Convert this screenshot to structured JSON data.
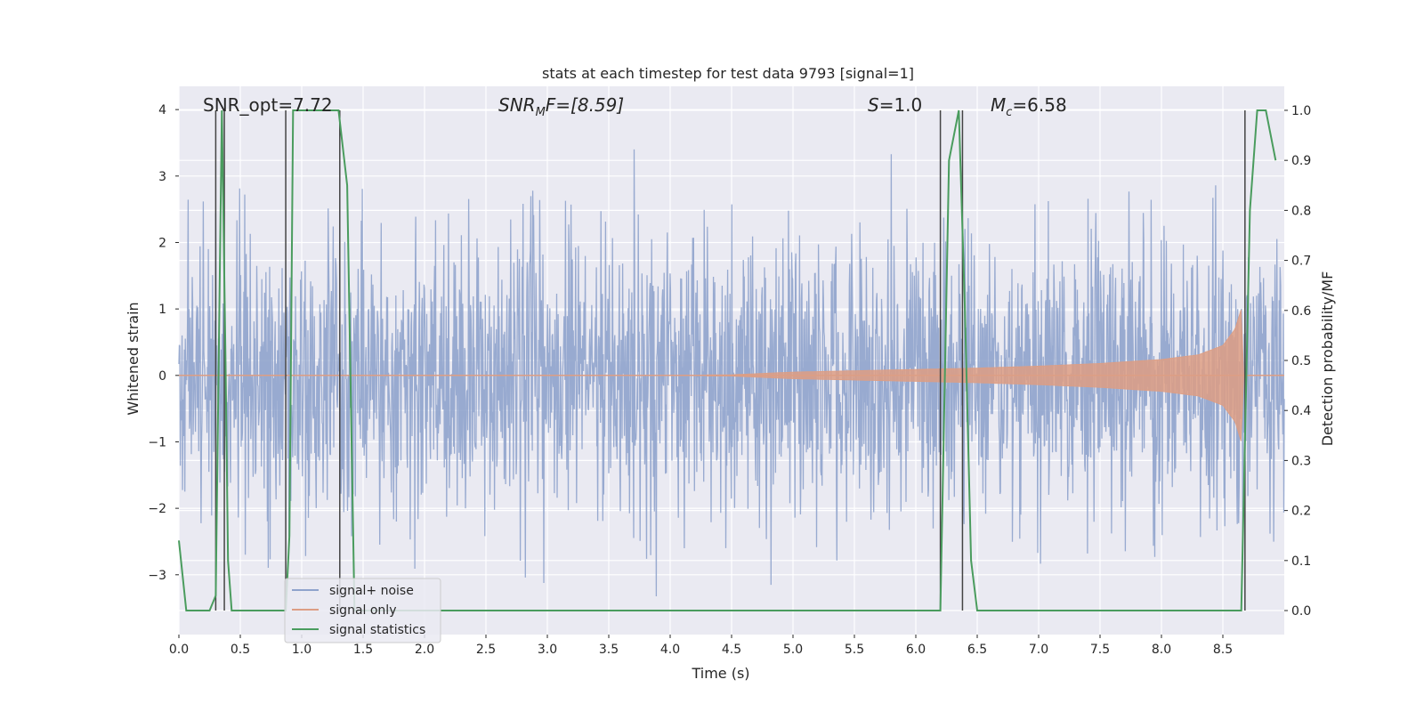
{
  "chart_data": {
    "type": "line",
    "title": "stats at each timestep for test data 9793 [signal=1]",
    "xlabel": "Time (s)",
    "ylabel": "Whitened strain",
    "y2label": "Detection probability/MF",
    "xlim": [
      0.0,
      9.0
    ],
    "ylim": [
      -3.9,
      4.35
    ],
    "y2lim": [
      -0.048,
      1.048
    ],
    "grid": true,
    "legend_position": "lower-left",
    "x_ticks": [
      "0.0",
      "0.5",
      "1.0",
      "1.5",
      "2.0",
      "2.5",
      "3.0",
      "3.5",
      "4.0",
      "4.5",
      "5.0",
      "5.5",
      "6.0",
      "6.5",
      "7.0",
      "7.5",
      "8.0",
      "8.5"
    ],
    "x_tick_values": [
      0.0,
      0.5,
      1.0,
      1.5,
      2.0,
      2.5,
      3.0,
      3.5,
      4.0,
      4.5,
      5.0,
      5.5,
      6.0,
      6.5,
      7.0,
      7.5,
      8.0,
      8.5
    ],
    "y_ticks": [
      "4",
      "3",
      "2",
      "1",
      "0",
      "−1",
      "−2",
      "−3"
    ],
    "y_tick_values": [
      4,
      3,
      2,
      1,
      0,
      -1,
      -2,
      -3
    ],
    "y2_ticks": [
      "1.0",
      "0.9",
      "0.8",
      "0.7",
      "0.6",
      "0.5",
      "0.4",
      "0.3",
      "0.2",
      "0.1",
      "0.0"
    ],
    "y2_tick_values": [
      1.0,
      0.9,
      0.8,
      0.7,
      0.6,
      0.5,
      0.4,
      0.3,
      0.2,
      0.1,
      0.0
    ],
    "annotations": {
      "snr_opt": "SNR_opt=7.72",
      "snr_mf_name": "SNR",
      "snr_mf_sub": "M",
      "snr_mf_rest": "F=[8.59]",
      "s_name": "S",
      "s_rest": "=1.0",
      "mc_name": "M",
      "mc_sub": "c",
      "mc_rest": "=6.58"
    },
    "series": [
      {
        "name": "signal+ noise",
        "color": "#8fa3cc",
        "description_envelope": {
          "x_range": [
            0.0,
            9.0
          ],
          "typical_peak": 2.5,
          "max_peak": 3.4
        }
      },
      {
        "name": "signal only",
        "color": "#dd9e84",
        "envelope": [
          [
            0.0,
            0.0
          ],
          [
            4.5,
            0.01
          ],
          [
            5.0,
            0.05
          ],
          [
            5.5,
            0.07
          ],
          [
            6.0,
            0.09
          ],
          [
            6.5,
            0.11
          ],
          [
            7.0,
            0.14
          ],
          [
            7.5,
            0.18
          ],
          [
            8.0,
            0.24
          ],
          [
            8.3,
            0.31
          ],
          [
            8.5,
            0.45
          ],
          [
            8.6,
            0.7
          ],
          [
            8.65,
            1.0
          ],
          [
            8.67,
            0.0
          ],
          [
            9.0,
            0.0
          ]
        ]
      },
      {
        "name": "signal statistics",
        "color": "#4a9c5e",
        "x": [
          0.0,
          0.06,
          0.15,
          0.25,
          0.3,
          0.35,
          0.38,
          0.4,
          0.43,
          0.5,
          0.87,
          0.9,
          0.93,
          0.96,
          1.3,
          1.37,
          1.43,
          6.2,
          6.27,
          6.35,
          6.4,
          6.45,
          6.5,
          8.65,
          8.72,
          8.78,
          8.85,
          8.93
        ],
        "values": [
          0.14,
          0.0,
          0.0,
          0.0,
          0.03,
          1.0,
          0.5,
          0.1,
          0.0,
          0.0,
          0.0,
          0.15,
          1.0,
          1.0,
          1.0,
          0.85,
          0.0,
          0.0,
          0.9,
          1.0,
          0.6,
          0.1,
          0.0,
          0.0,
          0.8,
          1.0,
          1.0,
          0.9
        ]
      }
    ],
    "vlines": [
      0.3,
      0.37,
      0.87,
      1.31,
      6.2,
      6.38,
      8.68
    ]
  }
}
